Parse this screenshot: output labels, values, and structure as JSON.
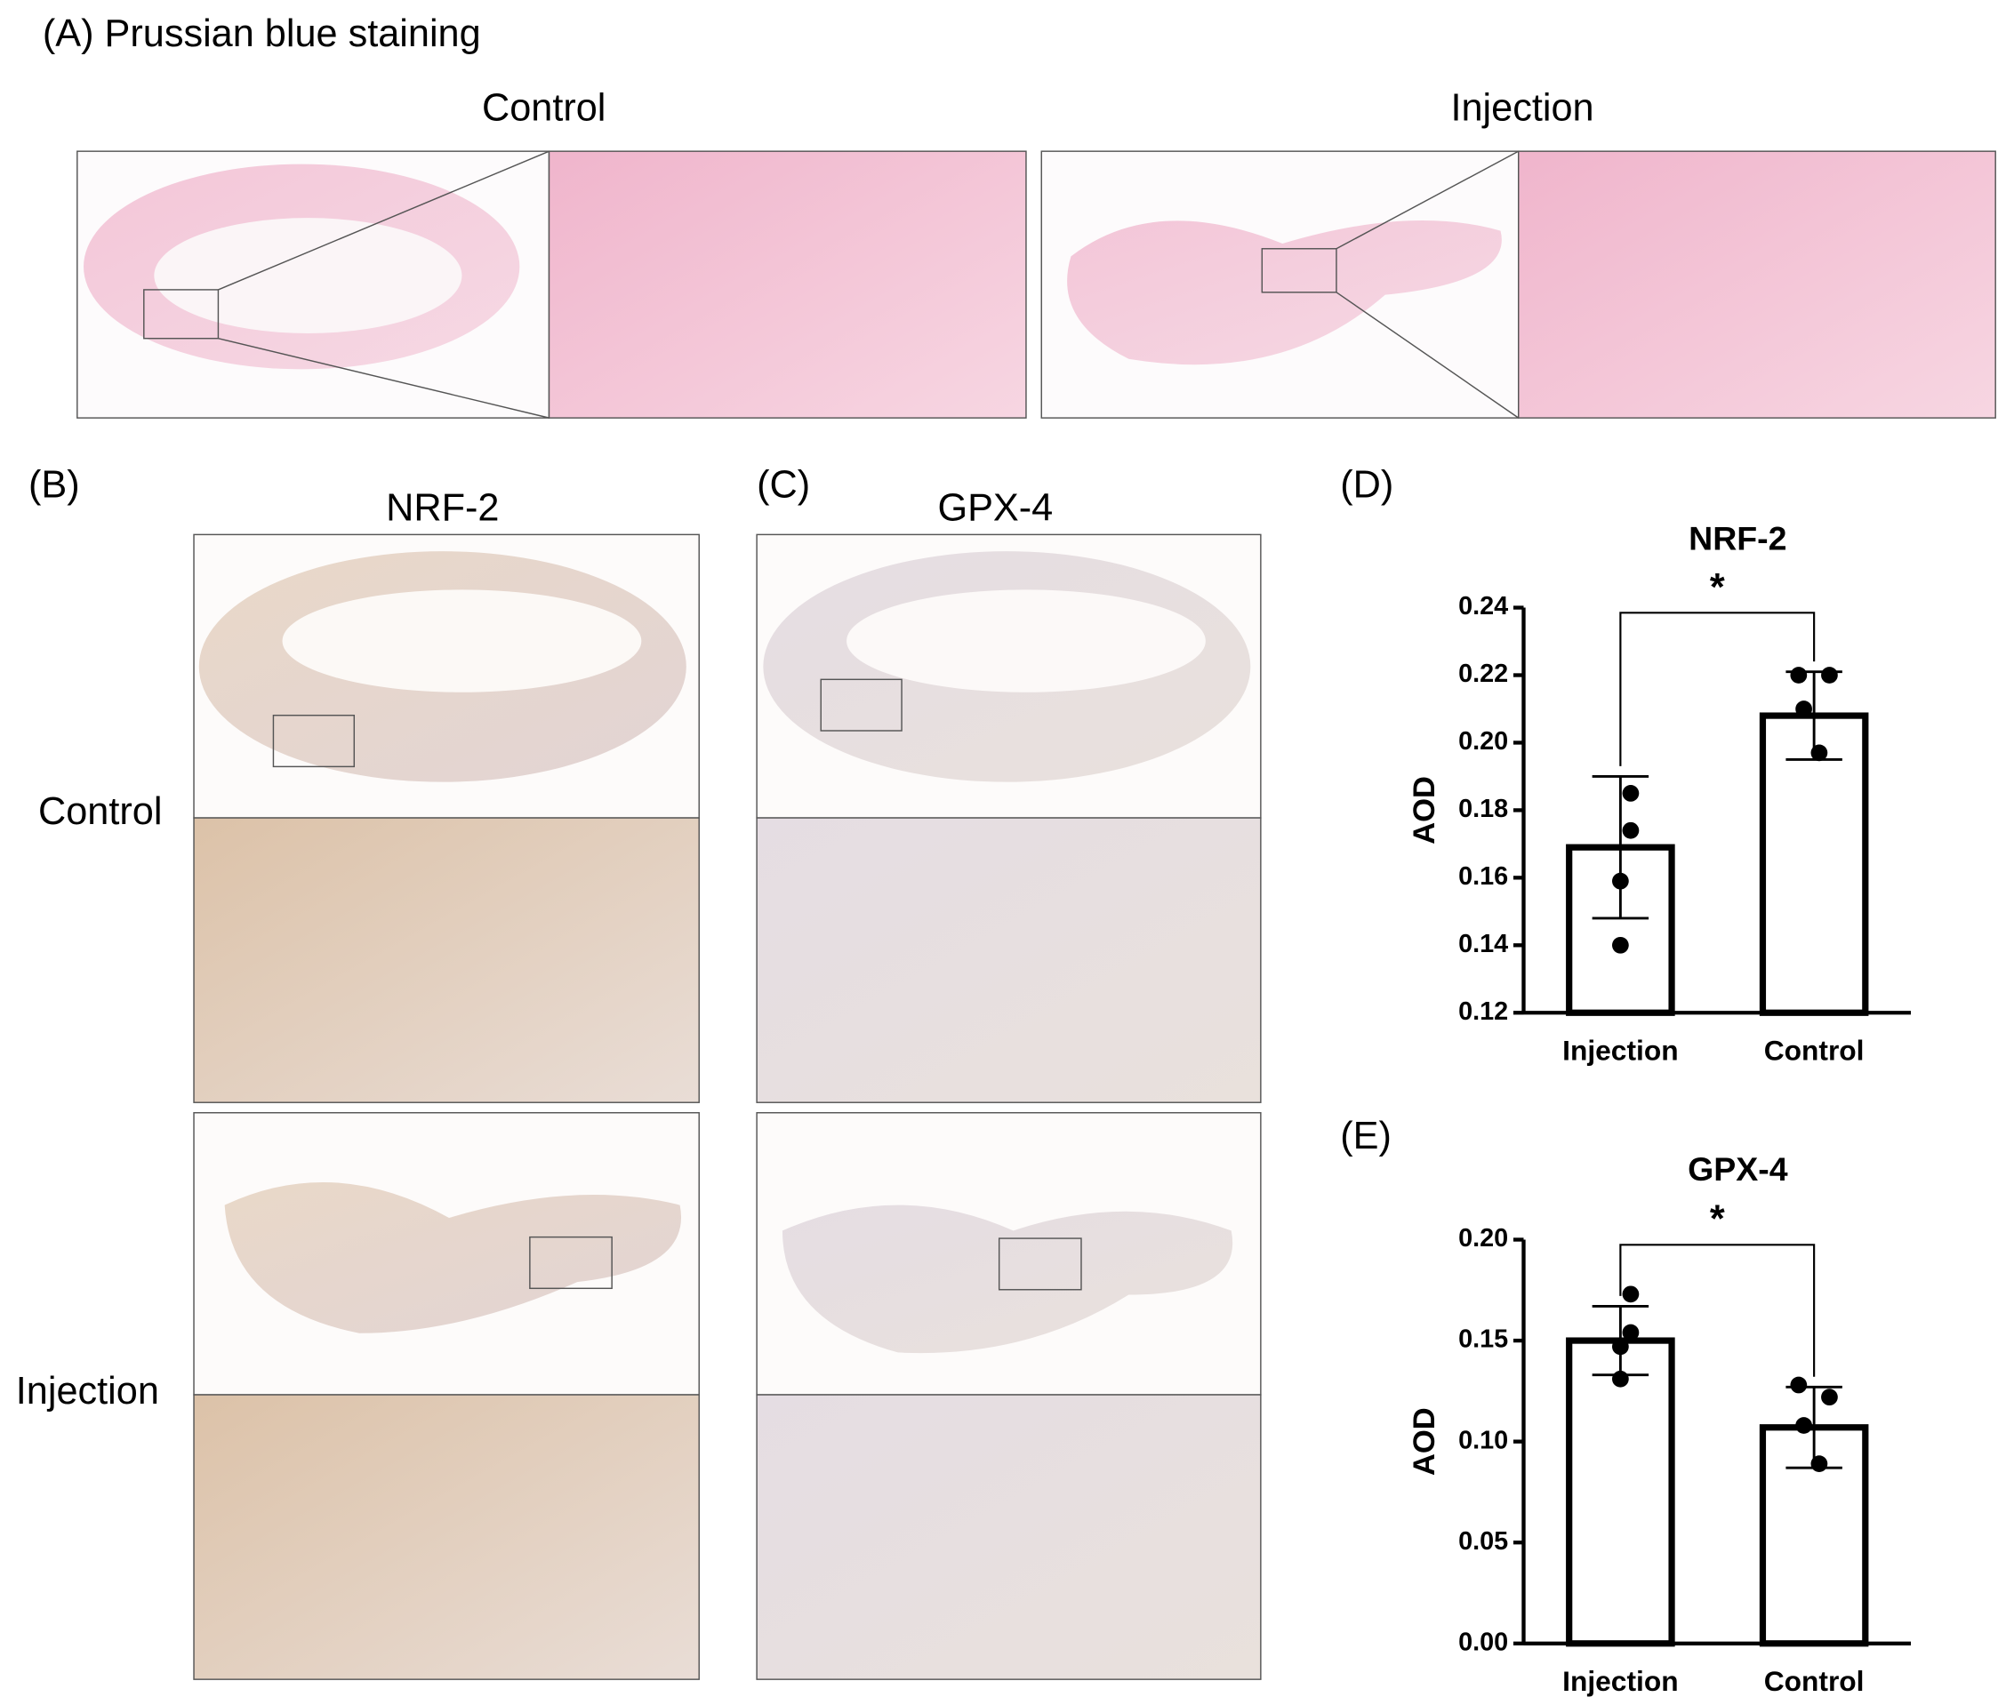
{
  "panel_a": {
    "label": "(A) Prussian blue staining",
    "groups": [
      "Control",
      "Injection"
    ]
  },
  "panel_b": {
    "label": "(B)",
    "title": "NRF-2",
    "rows": [
      "Control",
      "Injection"
    ]
  },
  "panel_c": {
    "label": "(C)",
    "title": "GPX-4"
  },
  "chart_data": [
    {
      "type": "bar",
      "panel_label": "(D)",
      "title": "NRF-2",
      "ylabel": "AOD",
      "significance": "*",
      "categories": [
        "Injection",
        "Control"
      ],
      "values": [
        0.169,
        0.208
      ],
      "errors": [
        0.021,
        0.013
      ],
      "points": [
        [
          0.185,
          0.174,
          0.159,
          0.14
        ],
        [
          0.22,
          0.22,
          0.21,
          0.197
        ]
      ],
      "ylim": [
        0.12,
        0.24
      ],
      "yticks": [
        0.12,
        0.14,
        0.16,
        0.18,
        {
          "value": 0.2,
          "label": "0.20"
        },
        0.22,
        0.24
      ]
    },
    {
      "type": "bar",
      "panel_label": "(E)",
      "title": "GPX-4",
      "ylabel": "AOD",
      "significance": "*",
      "categories": [
        "Injection",
        "Control"
      ],
      "values": [
        0.15,
        0.107
      ],
      "errors": [
        0.017,
        0.02
      ],
      "points": [
        [
          0.173,
          0.154,
          0.147,
          0.131
        ],
        [
          0.128,
          0.122,
          0.108,
          0.089
        ]
      ],
      "ylim": [
        0,
        0.2
      ],
      "yticks": [
        {
          "value": 0,
          "label": "0.00"
        },
        0.05,
        {
          "value": 0.1,
          "label": "0.10"
        },
        0.15,
        {
          "value": 0.2,
          "label": "0.20"
        }
      ]
    }
  ]
}
